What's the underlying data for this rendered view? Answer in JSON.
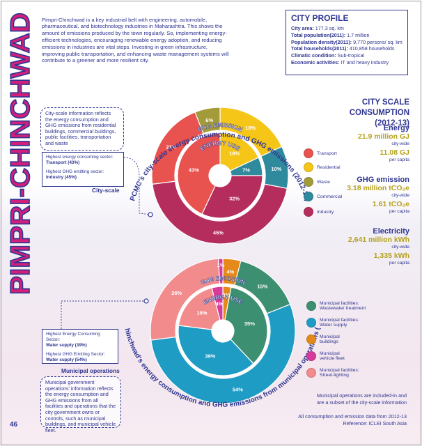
{
  "city": {
    "name": "PIMPRI-CHINCHWAD"
  },
  "intro_text": "Pimpri-Chinchwad is a key industrial belt with engineering, automobile, pharmaceutical, and biotechnology industries in Maharashtra. This shows the amount of emissions produced by the town regularly.  So, implementing energy-efficient technologies, encouraging renewable energy adoption, and reducing emissions in industries are vital steps. Investing in green infrastructure, improving public transportation, and enhancing waste management systems will contribute to a greener and more resilient city.",
  "profile": {
    "title": "CITY PROFILE",
    "rows": [
      {
        "label": "City area:",
        "value": " 177.3 sq. km"
      },
      {
        "label": "Total population(2011):",
        "value": " 1.7 million"
      },
      {
        "label": "Population density(2011):",
        "value": " 9,770 persons/ sq. km"
      },
      {
        "label": "Total households(2011):",
        "value": " 410,858 households"
      },
      {
        "label": "Climatic condition:",
        "value": " Sub-tropical"
      },
      {
        "label": "Economic activities:",
        "value": " IT and heavy industry"
      }
    ]
  },
  "city_scale": {
    "note": "City-scale information reflects the energy consumption and GHG emissions from residential buildings, commercial buildings, public facilities, transportation and waste",
    "highest_energy_label": "Highest energy consuming sector:",
    "highest_energy_value": "Transport (43%)",
    "highest_ghg_label": "Highest GHG emitting sector:",
    "highest_ghg_value": "Industry (45%)",
    "section_label": "City-scale"
  },
  "municipal": {
    "highest_energy_label": "Highest Energy Consuming Sector:",
    "highest_energy_value": "Water supply (39%)",
    "highest_ghg_label": "Highest GHG Emitting Sector:",
    "highest_ghg_value": "Water supply (54%)",
    "section_label": "Municipal operations",
    "note": "Municipal government operations' information reflects the energy consumption and GHG emissions from all facilities and operations that the city government owns or controls, such as municipal buildings, and municipal vehicle fleet."
  },
  "consumption": {
    "title_line1": "CITY SCALE CONSUMPTION",
    "title_line2": "(2012-13)",
    "energy": {
      "title": "Energy",
      "city_value": "21.9 million GJ",
      "city_sub": "city-wide",
      "capita_value": "11.08 GJ",
      "capita_sub": "per capita"
    },
    "ghg": {
      "title": "GHG emission",
      "city_value": "3.18 million tCO₂e",
      "city_sub": "city-wide",
      "capita_value": "1.61 tCO₂e",
      "capita_sub": "per capita"
    },
    "electricity": {
      "title": "Electricity",
      "city_value": "2,641 million kWh",
      "city_sub": "city-wide",
      "capita_value": "1,335 kWh",
      "capita_sub": "per capita"
    }
  },
  "colors": {
    "navy": "#2f3590",
    "gold": "#b5a11c",
    "magenta": "#d31f7a"
  },
  "legend_city": [
    {
      "label": "Transport",
      "color": "#e8524f",
      "icon": "bus-icon"
    },
    {
      "label": "Residential",
      "color": "#f5c518",
      "icon": "house-icon"
    },
    {
      "label": "Waste",
      "color": "#a39a3a",
      "icon": "waste-icon"
    },
    {
      "label": "Commercial",
      "color": "#2e8a9c",
      "icon": "building-icon"
    },
    {
      "label": "Industry",
      "color": "#b52d5c",
      "icon": "factory-icon"
    }
  ],
  "legend_muni": [
    {
      "label": "Municipal facilities: Wastewater treatment",
      "color": "#3c8f70",
      "icon": "wastewater-icon"
    },
    {
      "label": "Municipal facilities: Water supply",
      "color": "#1f9cc4",
      "icon": "water-icon"
    },
    {
      "label": "Municipal buildings",
      "color": "#e58a1a",
      "icon": "building-icon"
    },
    {
      "label": "Municipal vehicle fleet",
      "color": "#d63a9a",
      "icon": "vehicle-icon"
    },
    {
      "label": "Municipal facilities: Street-lighting",
      "color": "#f28b8b",
      "icon": "lamp-icon"
    }
  ],
  "footer": {
    "line1": "Municipal operations are included-in and",
    "line2": "are a subset of the city-scale information",
    "line3": "All consumption and emission data from 2012-13",
    "line4": "Reference: ICLEI South Asia"
  },
  "page_number": "46",
  "chart_data": [
    {
      "type": "pie",
      "title": "PCMC's city-scale energy consumption and GHG emissions (2012-13)",
      "rings": [
        {
          "name": "GHG EMISSION",
          "slices": [
            {
              "label": "Residential",
              "value": 18,
              "text": "18%",
              "color": "#f5c518"
            },
            {
              "label": "Commercial",
              "value": 10,
              "text": "10%",
              "color": "#2e8a9c"
            },
            {
              "label": "Industry",
              "value": 45,
              "text": "45%",
              "color": "#b52d5c"
            },
            {
              "label": "Transport",
              "value": 21,
              "text": "21%",
              "color": "#e8524f"
            },
            {
              "label": "Waste",
              "value": 6,
              "text": "6%",
              "color": "#a39a3a"
            }
          ]
        },
        {
          "name": "ENERGY USE",
          "slices": [
            {
              "label": "Residential",
              "value": 18,
              "text": "18%",
              "color": "#f5c518"
            },
            {
              "label": "Commercial",
              "value": 7,
              "text": "7%",
              "color": "#2e8a9c"
            },
            {
              "label": "Industry",
              "value": 32,
              "text": "32%",
              "color": "#b52d5c"
            },
            {
              "label": "Transport",
              "value": 43,
              "text": "43%",
              "color": "#e8524f"
            }
          ]
        }
      ]
    },
    {
      "type": "pie",
      "title": "Pimpri-Chinchwad's energy consumption and GHG emissions from municipal operations (2012-13)",
      "rings": [
        {
          "name": "GHG EMISSION",
          "slices": [
            {
              "label": "Municipal buildings",
              "value": 4,
              "text": "4%",
              "color": "#e58a1a"
            },
            {
              "label": "Wastewater treatment",
              "value": 15,
              "text": "15%",
              "color": "#3c8f70"
            },
            {
              "label": "Water supply",
              "value": 54,
              "text": "54%",
              "color": "#1f9cc4"
            },
            {
              "label": "Street-lighting",
              "value": 26,
              "text": "26%",
              "color": "#f28b8b"
            },
            {
              "label": "Vehicle fleet",
              "value": 1,
              "text": "1%",
              "color": "#d63a9a"
            }
          ]
        },
        {
          "name": "ENERGY USE",
          "slices": [
            {
              "label": "Municipal buildings",
              "value": 3,
              "text": "3%",
              "color": "#e58a1a"
            },
            {
              "label": "Wastewater treatment",
              "value": 35,
              "text": "35%",
              "color": "#3c8f70"
            },
            {
              "label": "Water supply",
              "value": 39,
              "text": "39%",
              "color": "#1f9cc4"
            },
            {
              "label": "Street-lighting",
              "value": 19,
              "text": "19%",
              "color": "#f28b8b"
            },
            {
              "label": "Vehicle fleet",
              "value": 4,
              "text": "4%",
              "color": "#d63a9a"
            }
          ]
        }
      ]
    }
  ]
}
